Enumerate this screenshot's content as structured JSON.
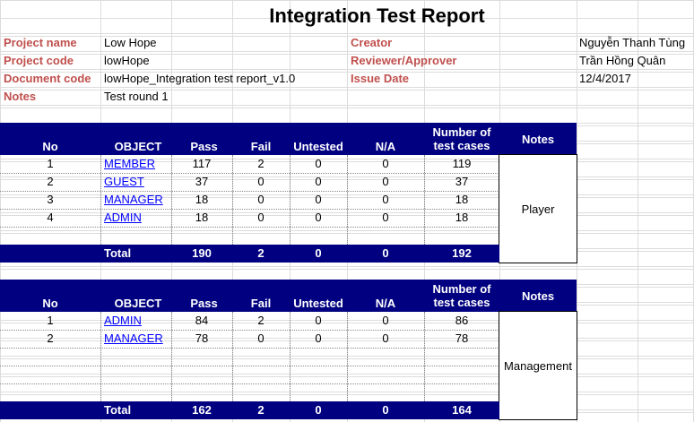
{
  "title": "Integration Test Report",
  "info": {
    "project_name_label": "Project name",
    "project_name": "Low Hope",
    "project_code_label": "Project code",
    "project_code": "lowHope",
    "document_code_label": "Document code",
    "document_code": "lowHope_Integration test report_v1.0",
    "notes_label": "Notes",
    "notes": "Test round 1",
    "creator_label": "Creator",
    "creator": "Nguyễn Thanh Tùng",
    "reviewer_label": "Reviewer/Approver",
    "reviewer": "Trần Hồng Quân",
    "issue_date_label": "Issue Date",
    "issue_date": "12/4/2017"
  },
  "headers": {
    "no": "No",
    "object": "OBJECT",
    "pass": "Pass",
    "fail": "Fail",
    "untested": "Untested",
    "na": "N/A",
    "cases_line1": "Number of",
    "cases_line2": "test cases",
    "notes": "Notes"
  },
  "table1": {
    "rows": [
      {
        "no": "1",
        "object": "MEMBER",
        "pass": "117",
        "fail": "2",
        "untested": "0",
        "na": "0",
        "cases": "119"
      },
      {
        "no": "2",
        "object": "GUEST",
        "pass": "37",
        "fail": "0",
        "untested": "0",
        "na": "0",
        "cases": "37"
      },
      {
        "no": "3",
        "object": "MANAGER",
        "pass": "18",
        "fail": "0",
        "untested": "0",
        "na": "0",
        "cases": "18"
      },
      {
        "no": "4",
        "object": "ADMIN",
        "pass": "18",
        "fail": "0",
        "untested": "0",
        "na": "0",
        "cases": "18"
      }
    ],
    "note": "Player",
    "total": {
      "label": "Total",
      "pass": "190",
      "fail": "2",
      "untested": "0",
      "na": "0",
      "cases": "192"
    }
  },
  "table2": {
    "rows": [
      {
        "no": "1",
        "object": "ADMIN",
        "pass": "84",
        "fail": "2",
        "untested": "0",
        "na": "0",
        "cases": "86"
      },
      {
        "no": "2",
        "object": "MANAGER",
        "pass": "78",
        "fail": "0",
        "untested": "0",
        "na": "0",
        "cases": "78"
      }
    ],
    "note": "Management",
    "total": {
      "label": "Total",
      "pass": "162",
      "fail": "2",
      "untested": "0",
      "na": "0",
      "cases": "164"
    }
  },
  "colors": {
    "header_bg": "#000080",
    "label": "#c0504d",
    "link": "#0000ff"
  }
}
